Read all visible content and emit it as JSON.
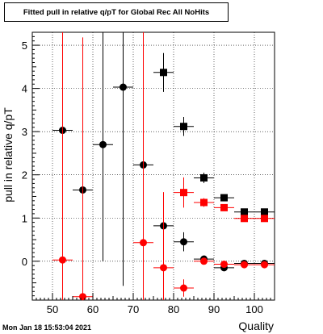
{
  "chart_data": {
    "type": "scatter",
    "title": "Fitted pull in relative q/pT for Global Rec All NoHits",
    "xlabel": "Quality",
    "ylabel": "pull in relative q/pT",
    "xlim": [
      45,
      105
    ],
    "ylim": [
      -0.9,
      5.3
    ],
    "x_ticks": [
      50,
      60,
      70,
      80,
      90,
      100
    ],
    "y_ticks": [
      0,
      1,
      2,
      3,
      4,
      5
    ],
    "grid": true,
    "series": [
      {
        "color": "#000000",
        "markers": [
          "circle",
          "square"
        ],
        "points": [
          {
            "x": 52.5,
            "y": 3.03,
            "yerr": null,
            "marker": "circle"
          },
          {
            "x": 57.5,
            "y": 1.65,
            "yerr": null,
            "marker": "circle"
          },
          {
            "x": 62.5,
            "y": 2.7,
            "yerr": 2.7,
            "marker": "circle"
          },
          {
            "x": 67.5,
            "y": 4.03,
            "yerr": 4.6,
            "marker": "circle"
          },
          {
            "x": 72.5,
            "y": 2.23,
            "yerr": null,
            "marker": "circle"
          },
          {
            "x": 77.5,
            "y": 0.82,
            "yerr": 0.45,
            "marker": "circle"
          },
          {
            "x": 77.5,
            "y": 4.37,
            "yerr": 0.45,
            "marker": "square"
          },
          {
            "x": 82.5,
            "y": 0.45,
            "yerr": 0.22,
            "marker": "circle"
          },
          {
            "x": 82.5,
            "y": 3.12,
            "yerr": 0.22,
            "marker": "square"
          },
          {
            "x": 87.5,
            "y": 0.05,
            "yerr": 0.08,
            "marker": "circle"
          },
          {
            "x": 87.5,
            "y": 1.93,
            "yerr": 0.12,
            "marker": "square"
          },
          {
            "x": 92.5,
            "y": -0.15,
            "yerr": 0.04,
            "marker": "circle"
          },
          {
            "x": 92.5,
            "y": 1.47,
            "yerr": 0.05,
            "marker": "square"
          },
          {
            "x": 97.5,
            "y": -0.05,
            "yerr": 0.03,
            "marker": "circle"
          },
          {
            "x": 97.5,
            "y": 1.14,
            "yerr": 0.03,
            "marker": "square"
          },
          {
            "x": 102.5,
            "y": -0.05,
            "yerr": 0.03,
            "marker": "circle"
          },
          {
            "x": 102.5,
            "y": 1.14,
            "yerr": 0.03,
            "marker": "square"
          }
        ]
      },
      {
        "color": "#ff0000",
        "markers": [
          "circle",
          "square"
        ],
        "points": [
          {
            "x": 52.5,
            "y": 0.03,
            "yerr": 6.0,
            "marker": "circle"
          },
          {
            "x": 57.5,
            "y": -0.82,
            "yerr": 6.0,
            "marker": "circle"
          },
          {
            "x": 72.5,
            "y": 0.43,
            "yerr": 6.0,
            "marker": "circle"
          },
          {
            "x": 77.5,
            "y": -0.15,
            "yerr": 1.75,
            "marker": "circle"
          },
          {
            "x": 82.5,
            "y": -0.62,
            "yerr": 0.2,
            "marker": "circle"
          },
          {
            "x": 82.5,
            "y": 1.59,
            "yerr": 0.35,
            "marker": "square"
          },
          {
            "x": 87.5,
            "y": 0.0,
            "yerr": 0.05,
            "marker": "circle"
          },
          {
            "x": 87.5,
            "y": 1.36,
            "yerr": 0.1,
            "marker": "square"
          },
          {
            "x": 92.5,
            "y": -0.07,
            "yerr": 0.03,
            "marker": "circle"
          },
          {
            "x": 92.5,
            "y": 1.24,
            "yerr": 0.04,
            "marker": "square"
          },
          {
            "x": 97.5,
            "y": -0.08,
            "yerr": 0.03,
            "marker": "circle"
          },
          {
            "x": 97.5,
            "y": 0.99,
            "yerr": 0.03,
            "marker": "square"
          },
          {
            "x": 102.5,
            "y": -0.08,
            "yerr": 0.03,
            "marker": "circle"
          },
          {
            "x": 102.5,
            "y": 0.99,
            "yerr": 0.03,
            "marker": "square"
          }
        ]
      }
    ],
    "xerr": 2.5
  },
  "footer": {
    "timestamp": "Mon Jan 18 15:53:04 2021"
  }
}
